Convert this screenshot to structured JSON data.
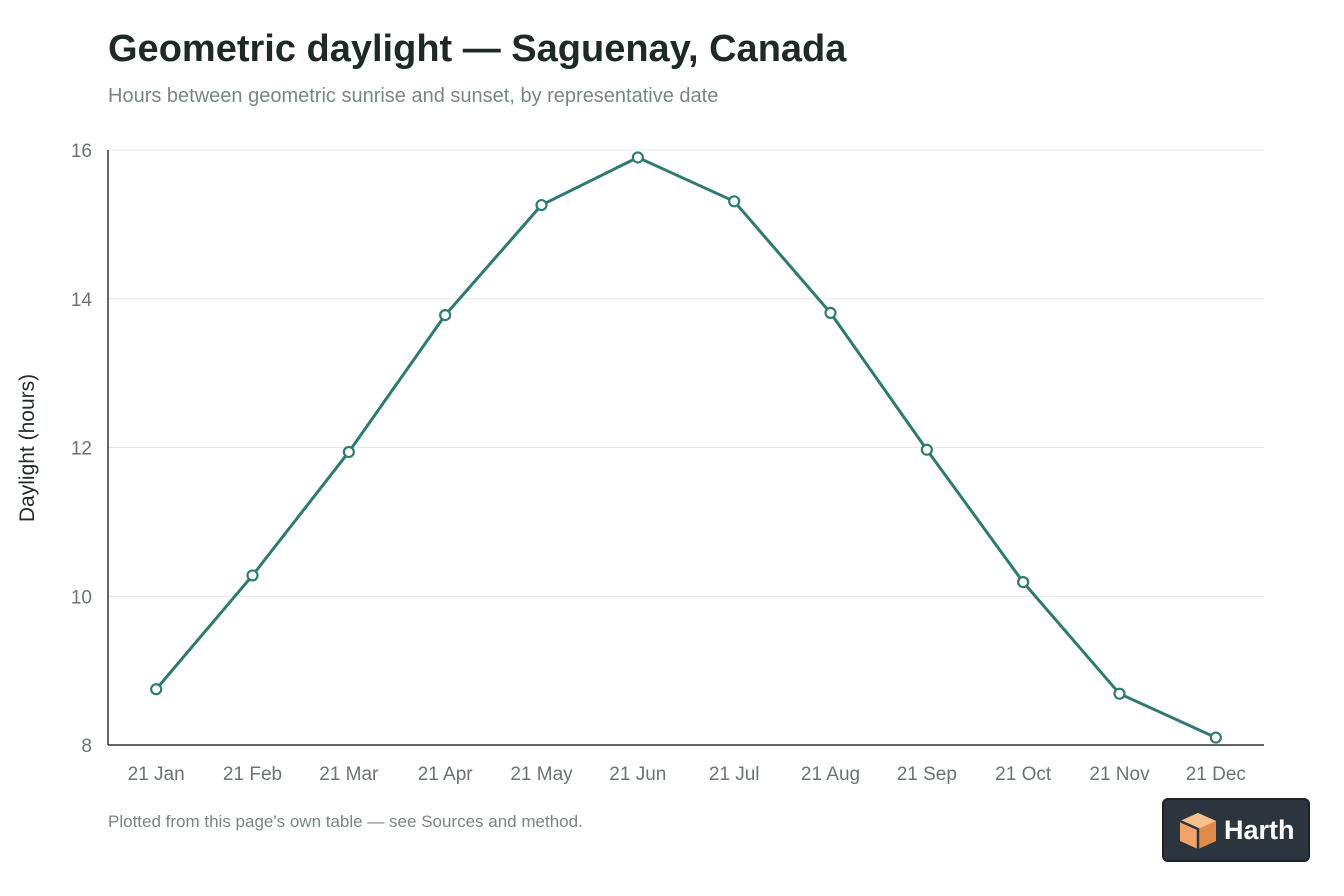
{
  "title": "Geometric daylight — Saguenay, Canada",
  "subtitle": "Hours between geometric sunrise and sunset, by representative date",
  "footnote": "Plotted from this page's own table — see Sources and method.",
  "brand": {
    "name": "Harth",
    "icon": "cube-logo-icon"
  },
  "colors": {
    "line": "#2f7a70",
    "grid": "#e6e9e8",
    "axis": "#333333",
    "tick_text": "#6b7472",
    "badge_bg": "#2c343d",
    "logo_orange": "#f0a46a"
  },
  "chart_data": {
    "type": "line",
    "title": "Geometric daylight — Saguenay, Canada",
    "subtitle": "Hours between geometric sunrise and sunset, by representative date",
    "xlabel": "",
    "ylabel": "Daylight (hours)",
    "categories": [
      "21 Jan",
      "21 Feb",
      "21 Mar",
      "21 Apr",
      "21 May",
      "21 Jun",
      "21 Jul",
      "21 Aug",
      "21 Sep",
      "21 Oct",
      "21 Nov",
      "21 Dec"
    ],
    "series": [
      {
        "values": [
          8.75,
          10.28,
          11.94,
          13.78,
          15.26,
          15.9,
          15.31,
          13.81,
          11.97,
          10.19,
          8.69,
          8.1
        ]
      }
    ],
    "ylim": [
      8,
      16
    ],
    "yticks": [
      8,
      10,
      12,
      14,
      16
    ],
    "grid": true,
    "legend": "none"
  }
}
